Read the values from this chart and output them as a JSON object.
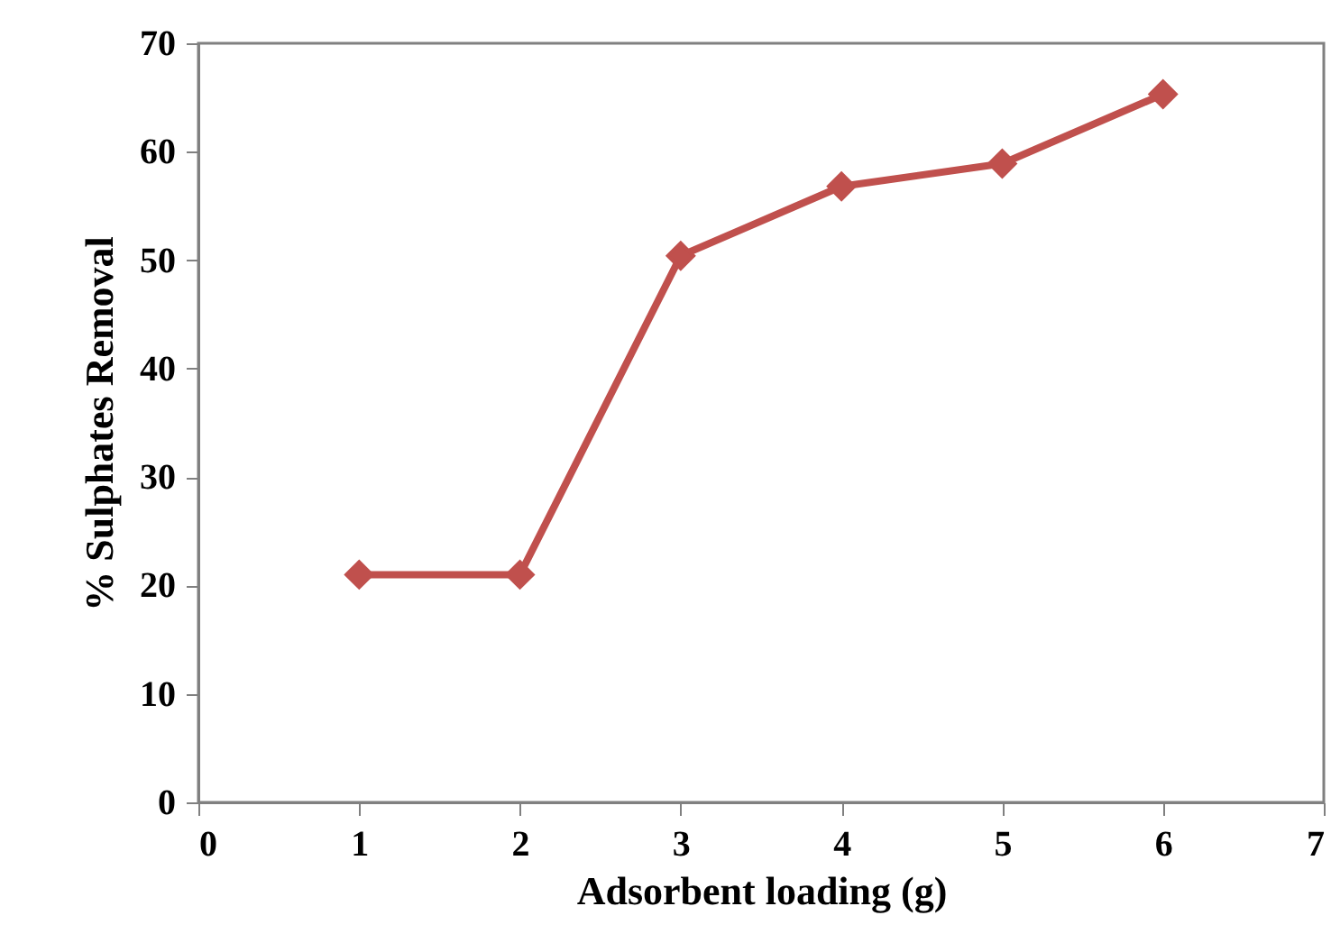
{
  "chart_data": {
    "type": "line",
    "xlabel": "Adsorbent loading (g)",
    "ylabel": "% Sulphates Removal",
    "x": [
      1,
      2,
      3,
      4,
      5,
      6
    ],
    "series": [
      {
        "color": "#c0504d",
        "values": [
          21,
          21,
          50.4,
          56.8,
          58.9,
          65.3
        ]
      }
    ],
    "xlim": [
      0,
      7
    ],
    "xticks": [
      0,
      1,
      2,
      3,
      4,
      5,
      6,
      7
    ],
    "ylim": [
      0,
      70
    ],
    "yticks": [
      0,
      10,
      20,
      30,
      40,
      50,
      60,
      70
    ],
    "grid": false,
    "marker": "diamond",
    "line_style": "solid"
  }
}
